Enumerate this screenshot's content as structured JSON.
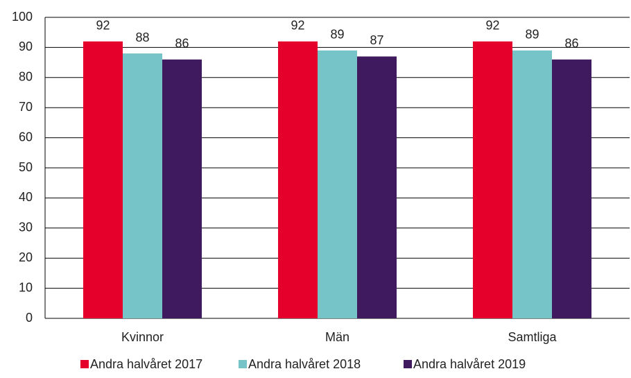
{
  "chart_data": {
    "type": "bar",
    "categories": [
      "Kvinnor",
      "Män",
      "Samtliga"
    ],
    "series": [
      {
        "name": "Andra halvåret 2017",
        "color": "#e4002b",
        "values": [
          92,
          92,
          92
        ]
      },
      {
        "name": "Andra halvåret 2018",
        "color": "#76c4c8",
        "values": [
          88,
          89,
          89
        ]
      },
      {
        "name": "Andra halvåret 2019",
        "color": "#3f1a5e",
        "values": [
          86,
          87,
          86
        ]
      }
    ],
    "ylim": [
      0,
      100
    ],
    "yticks": [
      0,
      10,
      20,
      30,
      40,
      50,
      60,
      70,
      80,
      90,
      100
    ],
    "grid": true,
    "legend": "bottom"
  }
}
